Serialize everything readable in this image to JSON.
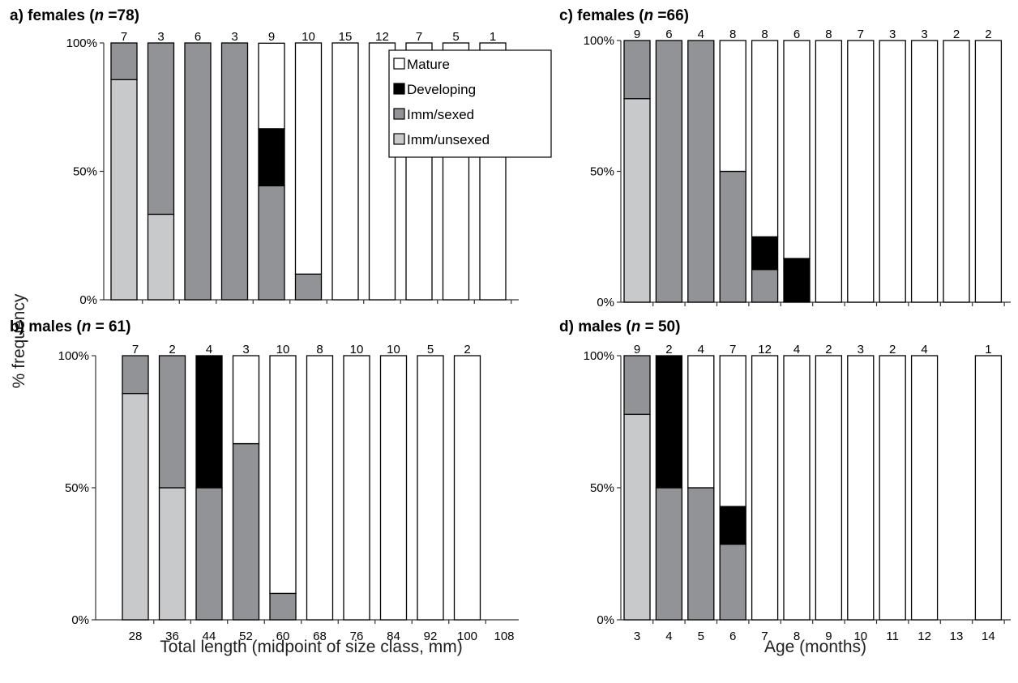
{
  "ylabel": "% frequency",
  "categories_stages": [
    "Imm/unsexed",
    "Imm/sexed",
    "Developing",
    "Mature"
  ],
  "stage_colors": {
    "Imm/unsexed": "#c8c9cb",
    "Imm/sexed": "#929396",
    "Developing": "#000000",
    "Mature": "#ffffff"
  },
  "legend": {
    "entries": [
      "Mature",
      "Developing",
      "Imm/sexed",
      "Imm/unsexed"
    ]
  },
  "chart_data": [
    {
      "id": "a",
      "type": "bar",
      "stacked": true,
      "title_prefix": "a) females (",
      "title_n": "n",
      "title_suffix": " =78)",
      "xlabel": "",
      "ylim": [
        0,
        100
      ],
      "yticks": [
        "0%",
        "50%",
        "100%"
      ],
      "categories": [
        "28",
        "36",
        "44",
        "52",
        "60",
        "68",
        "76",
        "84",
        "92",
        "100",
        "108"
      ],
      "show_xticklabels": false,
      "counts": [
        "7",
        "3",
        "6",
        "3",
        "9",
        "10",
        "15",
        "12",
        "7",
        "5",
        "1"
      ],
      "series": [
        {
          "name": "Imm/unsexed",
          "values": [
            85.7,
            33.3,
            0,
            0,
            0,
            0,
            0,
            0,
            0,
            0,
            0
          ]
        },
        {
          "name": "Imm/sexed",
          "values": [
            14.3,
            66.7,
            100,
            100,
            44.4,
            10,
            0,
            0,
            0,
            0,
            0
          ]
        },
        {
          "name": "Developing",
          "values": [
            0,
            0,
            0,
            0,
            22.2,
            0,
            0,
            0,
            0,
            0,
            0
          ]
        },
        {
          "name": "Mature",
          "values": [
            0,
            0,
            0,
            0,
            33.3,
            90,
            100,
            100,
            100,
            100,
            100
          ]
        }
      ]
    },
    {
      "id": "b",
      "type": "bar",
      "stacked": true,
      "title_prefix": "b) males (",
      "title_n": "n",
      "title_suffix": " = 61)",
      "xlabel": "Total length (midpoint of size class, mm)",
      "ylim": [
        0,
        100
      ],
      "yticks": [
        "0%",
        "50%",
        "100%"
      ],
      "categories": [
        "28",
        "36",
        "44",
        "52",
        "60",
        "68",
        "76",
        "84",
        "92",
        "100",
        "108"
      ],
      "show_xticklabels": true,
      "counts": [
        "7",
        "2",
        "4",
        "3",
        "10",
        "8",
        "10",
        "10",
        "5",
        "2",
        ""
      ],
      "series": [
        {
          "name": "Imm/unsexed",
          "values": [
            85.7,
            50,
            0,
            0,
            0,
            0,
            0,
            0,
            0,
            0,
            0
          ]
        },
        {
          "name": "Imm/sexed",
          "values": [
            14.3,
            50,
            50,
            66.7,
            10,
            0,
            0,
            0,
            0,
            0,
            0
          ]
        },
        {
          "name": "Developing",
          "values": [
            0,
            0,
            50,
            0,
            0,
            0,
            0,
            0,
            0,
            0,
            0
          ]
        },
        {
          "name": "Mature",
          "values": [
            0,
            0,
            0,
            33.3,
            90,
            100,
            100,
            100,
            100,
            100,
            0
          ]
        }
      ]
    },
    {
      "id": "c",
      "type": "bar",
      "stacked": true,
      "title_prefix": "c) females (",
      "title_n": "n",
      "title_suffix": " =66)",
      "xlabel": "",
      "ylim": [
        0,
        100
      ],
      "yticks": [
        "0%",
        "50%",
        "100%"
      ],
      "categories": [
        "3",
        "4",
        "5",
        "6",
        "7",
        "8",
        "9",
        "10",
        "11",
        "12",
        "13",
        "14"
      ],
      "show_xticklabels": false,
      "counts": [
        "9",
        "6",
        "4",
        "8",
        "8",
        "6",
        "8",
        "7",
        "3",
        "3",
        "2",
        "2"
      ],
      "series": [
        {
          "name": "Imm/unsexed",
          "values": [
            77.8,
            0,
            0,
            0,
            0,
            0,
            0,
            0,
            0,
            0,
            0,
            0
          ]
        },
        {
          "name": "Imm/sexed",
          "values": [
            22.2,
            100,
            100,
            50,
            12.5,
            0,
            0,
            0,
            0,
            0,
            0,
            0
          ]
        },
        {
          "name": "Developing",
          "values": [
            0,
            0,
            0,
            0,
            12.5,
            16.7,
            0,
            0,
            0,
            0,
            0,
            0
          ]
        },
        {
          "name": "Mature",
          "values": [
            0,
            0,
            0,
            50,
            75,
            83.3,
            100,
            100,
            100,
            100,
            100,
            100
          ]
        }
      ]
    },
    {
      "id": "d",
      "type": "bar",
      "stacked": true,
      "title_prefix": "d) males (",
      "title_n": "n",
      "title_suffix": " = 50)",
      "xlabel": "Age (months)",
      "ylim": [
        0,
        100
      ],
      "yticks": [
        "0%",
        "50%",
        "100%"
      ],
      "categories": [
        "3",
        "4",
        "5",
        "6",
        "7",
        "8",
        "9",
        "10",
        "11",
        "12",
        "13",
        "14"
      ],
      "show_xticklabels": true,
      "counts": [
        "9",
        "2",
        "4",
        "7",
        "12",
        "4",
        "2",
        "3",
        "2",
        "4",
        "",
        "1"
      ],
      "series": [
        {
          "name": "Imm/unsexed",
          "values": [
            77.8,
            0,
            0,
            0,
            0,
            0,
            0,
            0,
            0,
            0,
            0,
            0
          ]
        },
        {
          "name": "Imm/sexed",
          "values": [
            22.2,
            50,
            50,
            28.6,
            0,
            0,
            0,
            0,
            0,
            0,
            0,
            0
          ]
        },
        {
          "name": "Developing",
          "values": [
            0,
            50,
            0,
            14.3,
            0,
            0,
            0,
            0,
            0,
            0,
            0,
            0
          ]
        },
        {
          "name": "Mature",
          "values": [
            0,
            0,
            50,
            57.1,
            100,
            100,
            100,
            100,
            100,
            100,
            0,
            100
          ]
        }
      ]
    }
  ]
}
